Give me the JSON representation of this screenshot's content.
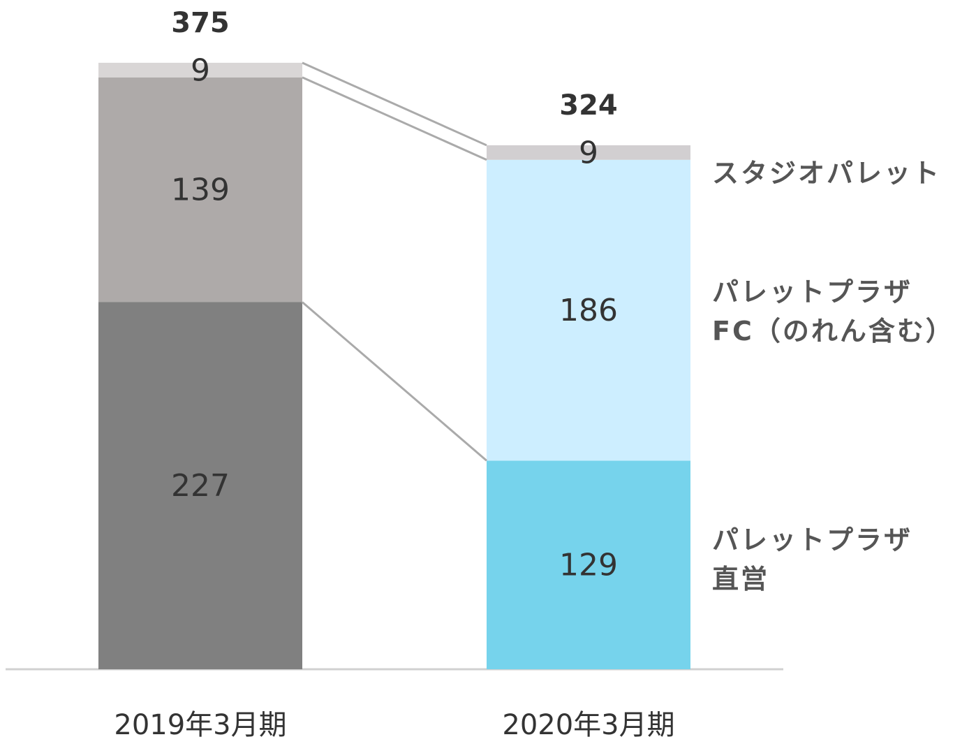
{
  "chart_data": {
    "type": "stacked-bar",
    "categories": [
      "2019年3月期",
      "2020年3月期"
    ],
    "series": [
      {
        "name": "パレットプラザ\n直営",
        "colors": [
          "#808080",
          "#76d3ec"
        ],
        "values": [
          227,
          129
        ]
      },
      {
        "name": "パレットプラザ\nFC（のれん含む）",
        "colors": [
          "#aeaaa9",
          "#cdeeff"
        ],
        "values": [
          139,
          186
        ]
      },
      {
        "name": "スタジオパレット",
        "colors": [
          "#d9d6d6",
          "#d2cfd1"
        ],
        "values": [
          9,
          9
        ]
      }
    ],
    "totals": [
      375,
      324
    ],
    "ylim": [
      0,
      400
    ]
  }
}
